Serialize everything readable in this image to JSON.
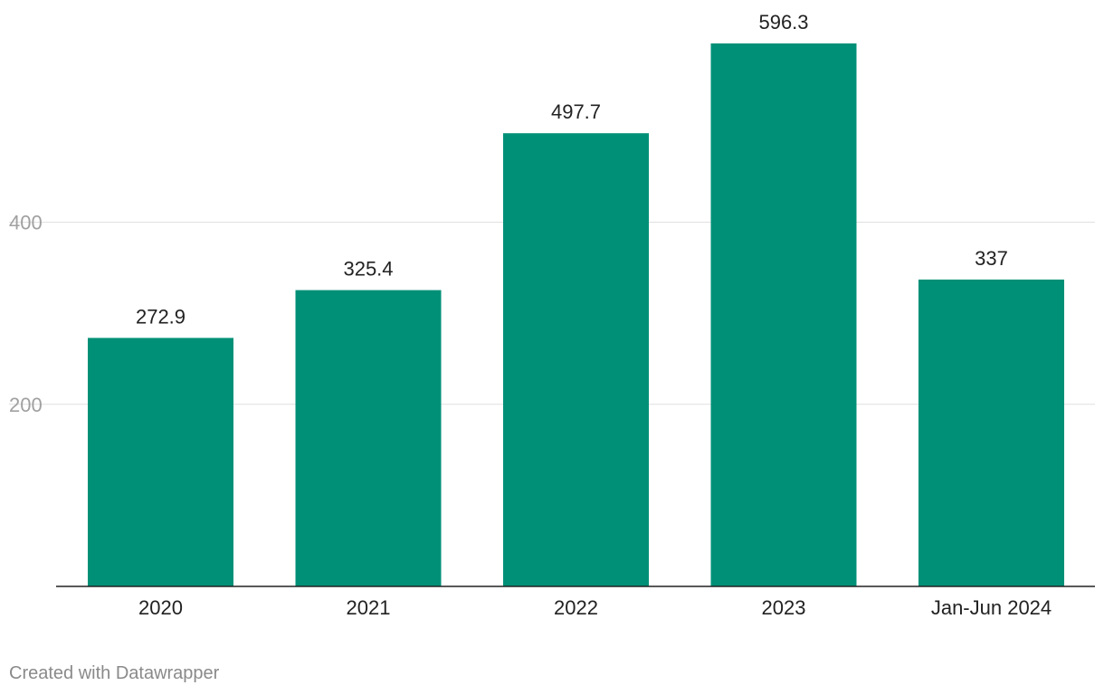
{
  "chart_data": {
    "type": "bar",
    "categories": [
      "2020",
      "2021",
      "2022",
      "2023",
      "Jan-Jun 2024"
    ],
    "values": [
      272.9,
      325.4,
      497.7,
      596.3,
      337
    ],
    "value_labels": [
      "272.9",
      "325.4",
      "497.7",
      "596.3",
      "337"
    ],
    "yticks": [
      200,
      400
    ],
    "ylim": [
      0,
      596.3
    ],
    "grid": true,
    "bar_color": "#009077"
  },
  "footer": {
    "credit": "Created with Datawrapper"
  }
}
